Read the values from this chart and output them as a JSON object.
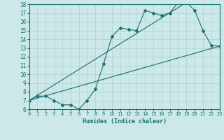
{
  "xlabel": "Humidex (Indice chaleur)",
  "bg_color": "#cce8e8",
  "line_color": "#1a7070",
  "grid_color": "#b0d0d0",
  "xlim": [
    0,
    23
  ],
  "ylim": [
    6,
    18
  ],
  "xticks": [
    0,
    1,
    2,
    3,
    4,
    5,
    6,
    7,
    8,
    9,
    10,
    11,
    12,
    13,
    14,
    15,
    16,
    17,
    18,
    19,
    20,
    21,
    22,
    23
  ],
  "yticks": [
    6,
    7,
    8,
    9,
    10,
    11,
    12,
    13,
    14,
    15,
    16,
    17,
    18
  ],
  "line1_x": [
    0,
    1,
    2,
    3,
    4,
    5,
    6,
    7,
    8,
    9,
    10,
    11,
    12,
    13,
    14,
    15,
    16,
    17,
    18,
    19,
    20,
    21,
    22,
    23
  ],
  "line1_y": [
    7,
    7.5,
    7.5,
    7,
    6.5,
    6.5,
    6,
    7,
    8.3,
    11.2,
    14.3,
    15.3,
    15.1,
    15,
    17.3,
    17,
    16.7,
    17,
    18.2,
    18.2,
    17.3,
    15,
    13.3,
    13.2
  ],
  "line2_x": [
    0,
    23
  ],
  "line2_y": [
    7,
    13.2
  ],
  "line3_x": [
    0,
    19
  ],
  "line3_y": [
    7,
    18.2
  ]
}
